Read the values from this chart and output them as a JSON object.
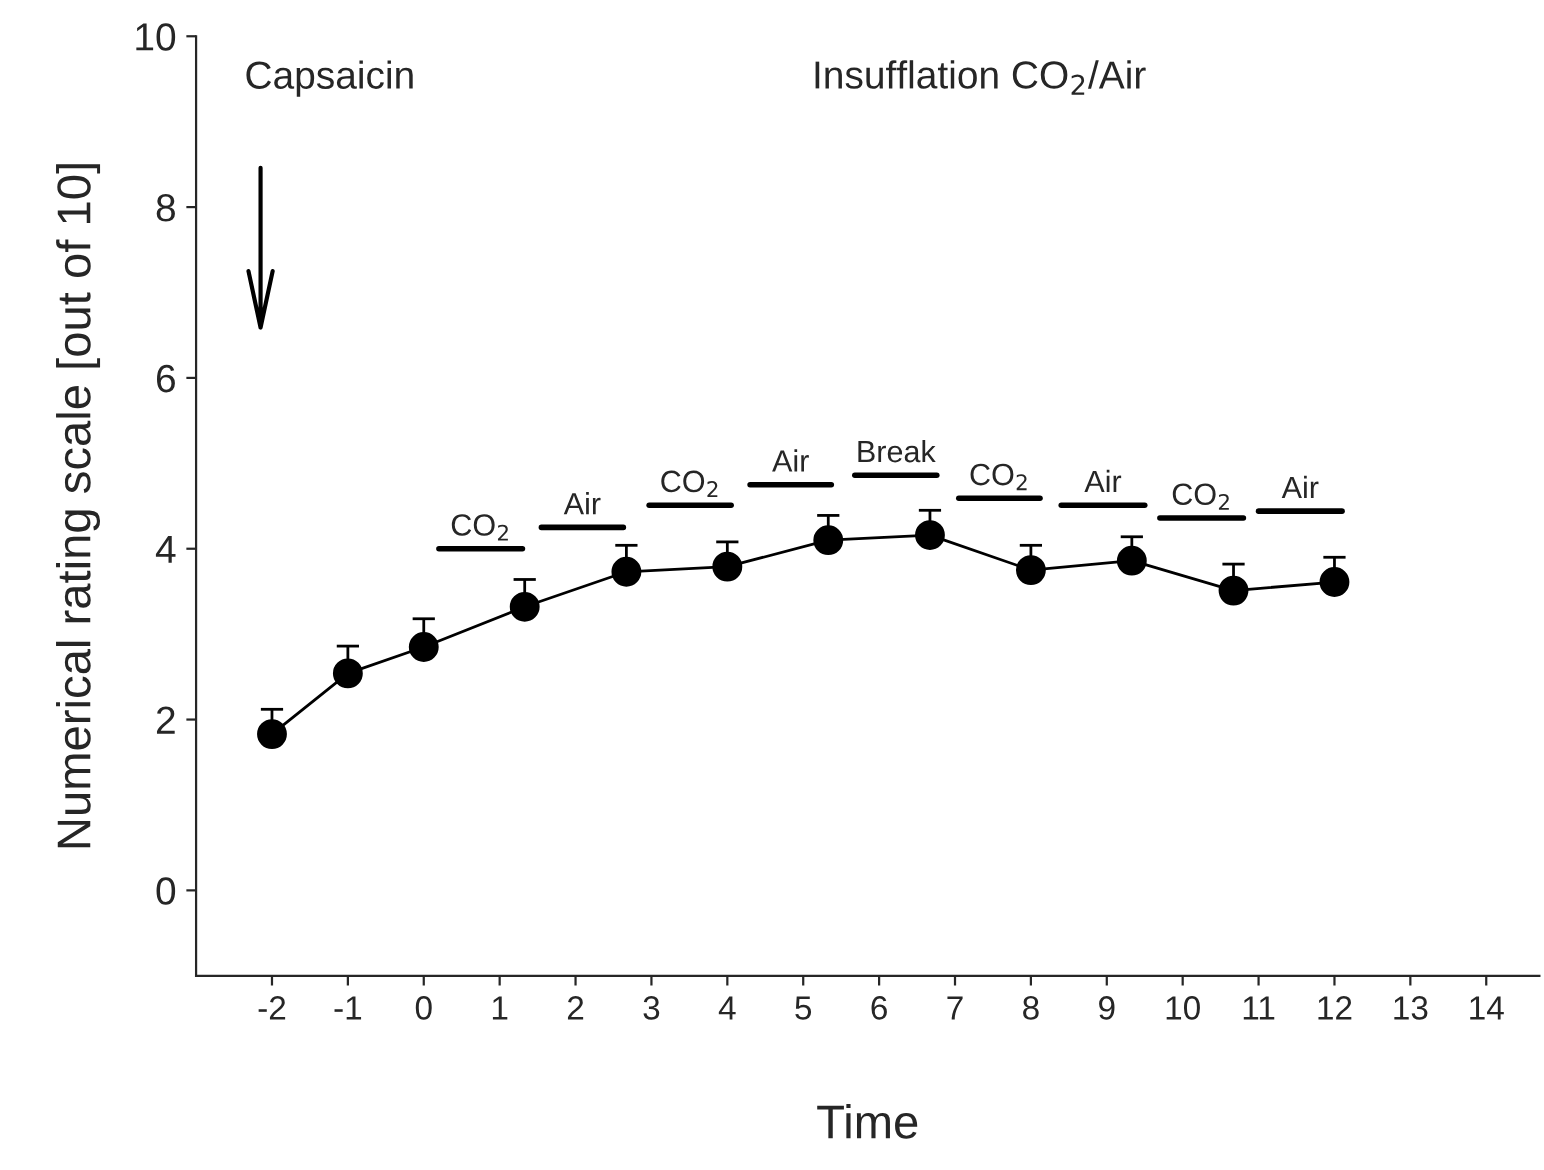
{
  "chart_data": {
    "type": "line",
    "xlabel": "Time",
    "ylabel": "Numerical rating scale [out of 10]",
    "x": [
      -2,
      -1,
      0,
      1.33,
      2.67,
      4,
      5.33,
      6.67,
      8,
      9.33,
      10.67,
      12
    ],
    "series": [
      {
        "color": "#000000",
        "values": [
          1.83,
          2.54,
          2.85,
          3.32,
          3.73,
          3.79,
          4.1,
          4.16,
          3.75,
          3.86,
          3.51,
          3.61
        ],
        "errors": [
          [
            1.83,
            2.12
          ],
          [
            2.54,
            2.86
          ],
          [
            2.85,
            3.18
          ],
          [
            3.32,
            3.64
          ],
          [
            3.73,
            4.04
          ],
          [
            3.79,
            4.08
          ],
          [
            4.1,
            4.39
          ],
          [
            4.16,
            4.45
          ],
          [
            3.75,
            4.04
          ],
          [
            3.86,
            4.14
          ],
          [
            3.51,
            3.82
          ],
          [
            3.61,
            3.9
          ]
        ]
      },
      {
        "name": "CO$_{2}$",
        "color": "#000000",
        "marker": "none",
        "x": [
          0.2,
          1.3
        ],
        "values": [
          4.0,
          4.0
        ]
      },
      {
        "name": "Air",
        "color": "#000000",
        "marker": "none",
        "x": [
          1.55,
          2.63
        ],
        "values": [
          4.25,
          4.25
        ]
      },
      {
        "name": "CO$_{2}$",
        "color": "#000000",
        "marker": "none",
        "x": [
          2.97,
          4.05
        ],
        "values": [
          4.51,
          4.51
        ]
      },
      {
        "name": "Air",
        "color": "#000000",
        "marker": "none",
        "x": [
          4.3,
          5.37
        ],
        "values": [
          4.75,
          4.75
        ]
      },
      {
        "name": "Break",
        "color": "#000000",
        "marker": "none",
        "x": [
          5.68,
          6.76
        ],
        "values": [
          4.86,
          4.86
        ]
      },
      {
        "name": "CO$_{2}$",
        "color": "#000000",
        "marker": "none",
        "x": [
          7.05,
          8.12
        ],
        "values": [
          4.59,
          4.59
        ]
      },
      {
        "name": "Air",
        "color": "#000000",
        "marker": "none",
        "x": [
          8.4,
          9.5
        ],
        "values": [
          4.51,
          4.51
        ]
      },
      {
        "name": "CO$_{2}$",
        "color": "#000000",
        "marker": "none",
        "x": [
          9.7,
          10.8
        ],
        "values": [
          4.36,
          4.36
        ]
      },
      {
        "name": "Air",
        "color": "#000000",
        "marker": "none",
        "x": [
          11.0,
          12.1
        ],
        "values": [
          4.44,
          4.44
        ]
      }
    ],
    "xlim": [
      -3,
      14.7
    ],
    "ylim": [
      -1,
      10
    ],
    "xticks": [
      -2,
      -1,
      0,
      1,
      2,
      3,
      4,
      5,
      6,
      7,
      8,
      9,
      10,
      11,
      12,
      13,
      14
    ],
    "yticks": [
      0,
      2,
      4,
      6,
      8,
      10
    ],
    "marker": "circle",
    "line_style": "solid",
    "grid": false,
    "legend": false,
    "annotations": [
      "Capsaicin",
      "Insufflation CO$_{2}$/Air"
    ]
  }
}
